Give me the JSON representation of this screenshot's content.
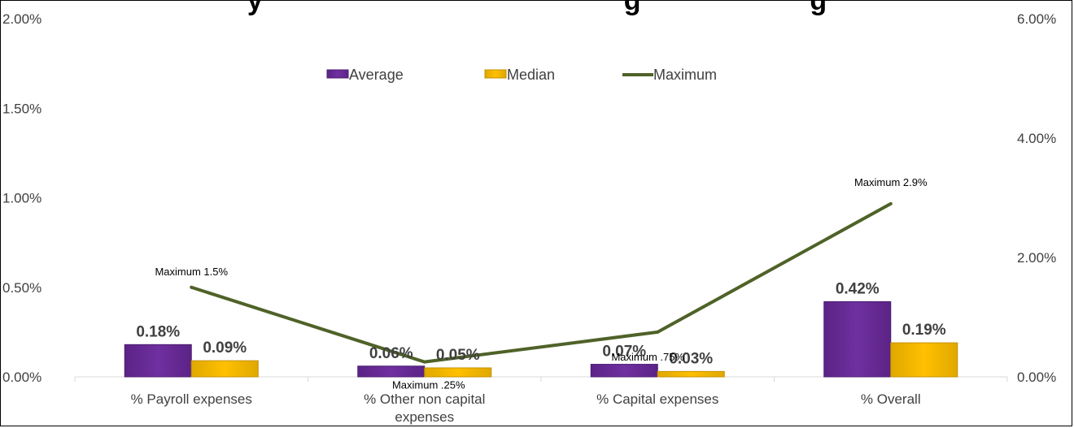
{
  "chart_data": {
    "type": "bar",
    "title_visible": "y                                               g                      g",
    "categories": [
      [
        "% Payroll expenses"
      ],
      [
        "% Other non capital",
        "expenses"
      ],
      [
        "% Capital expenses"
      ],
      [
        "% Overall"
      ]
    ],
    "series": [
      {
        "name": "Average",
        "kind": "bar",
        "axis": "left",
        "values": [
          0.18,
          0.06,
          0.07,
          0.42
        ],
        "labels": [
          "0.18%",
          "0.06%",
          "0.07%",
          "0.42%"
        ]
      },
      {
        "name": "Median",
        "kind": "bar",
        "axis": "left",
        "values": [
          0.09,
          0.05,
          0.03,
          0.19
        ],
        "labels": [
          "0.09%",
          "0.05%",
          "0.03%",
          "0.19%"
        ]
      },
      {
        "name": "Maximum",
        "kind": "line",
        "axis": "right",
        "values": [
          1.5,
          0.25,
          0.75,
          2.9
        ],
        "labels": [
          "Maximum 1.5%",
          "Maximum .25%",
          "Maximum .75%",
          "Maximum 2.9%"
        ]
      }
    ],
    "y_left": {
      "range": [
        0,
        2
      ],
      "ticks": [
        "0.00%",
        "0.50%",
        "1.00%",
        "1.50%",
        "2.00%"
      ]
    },
    "y_right": {
      "range": [
        0,
        6
      ],
      "ticks": [
        "0.00%",
        "2.00%",
        "4.00%",
        "6.00%"
      ]
    },
    "legend_position": "top-center",
    "grid": false,
    "colors": {
      "average": "#7030a0",
      "median": "#ffc000",
      "maximum": "#4f6228"
    }
  }
}
